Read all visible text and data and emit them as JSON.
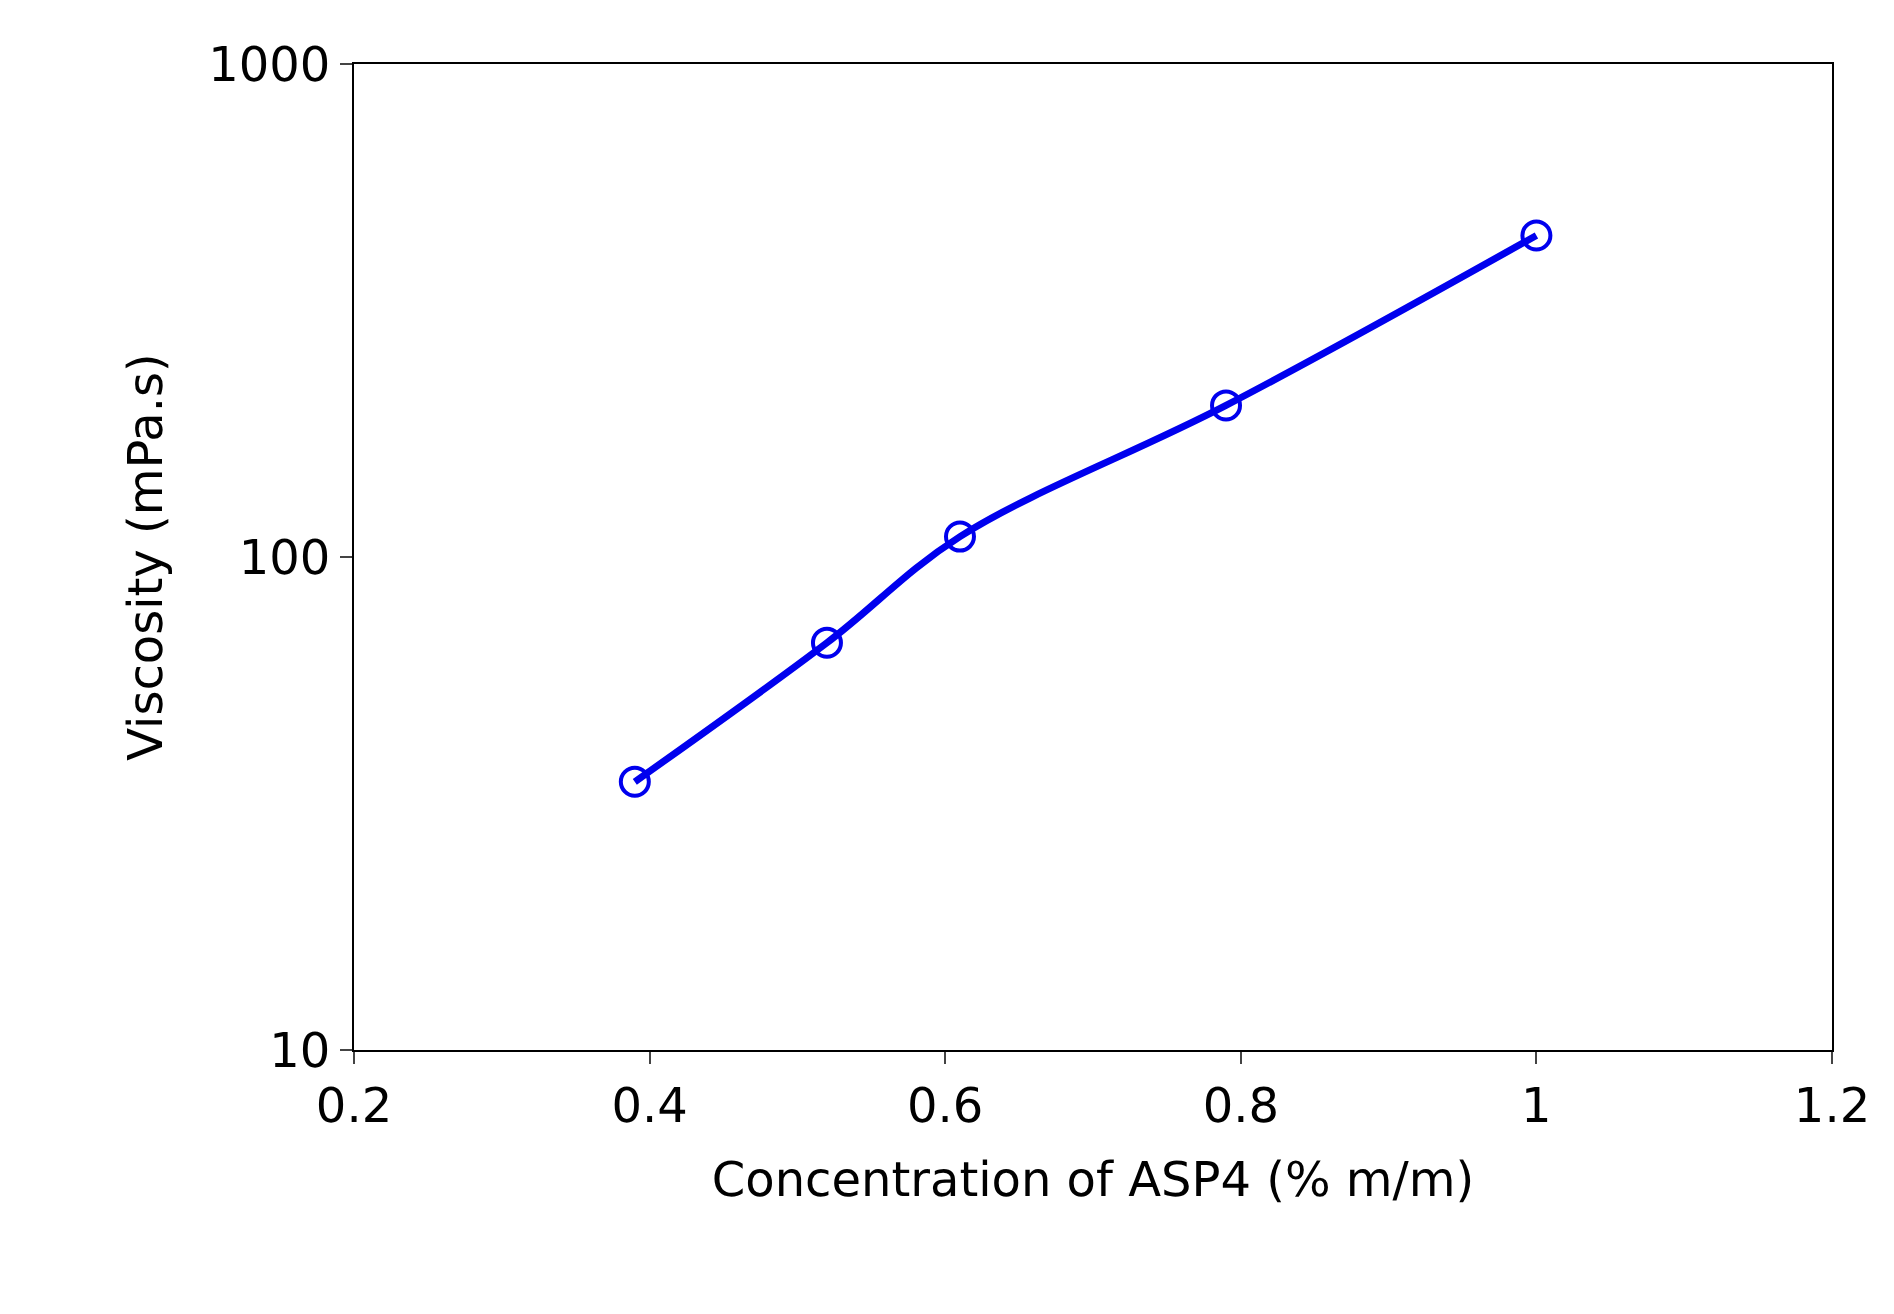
{
  "chart_data": {
    "type": "line",
    "xlabel": "Concentration of ASP4 (% m/m)",
    "ylabel": "Viscosity (mPa.s)",
    "x": [
      0.39,
      0.52,
      0.61,
      0.79,
      1.0
    ],
    "series": [
      {
        "color": "#0000ee",
        "values": [
          35,
          67,
          110,
          203,
          449
        ]
      }
    ],
    "xlim": [
      0.2,
      1.2
    ],
    "xticks": [
      0.2,
      0.4,
      0.6,
      0.8,
      1,
      1.2
    ],
    "ylim": [
      10,
      1000
    ],
    "yticks": [
      10,
      100,
      1000
    ],
    "log": "y",
    "marker": "circle",
    "line_style": "solid"
  }
}
